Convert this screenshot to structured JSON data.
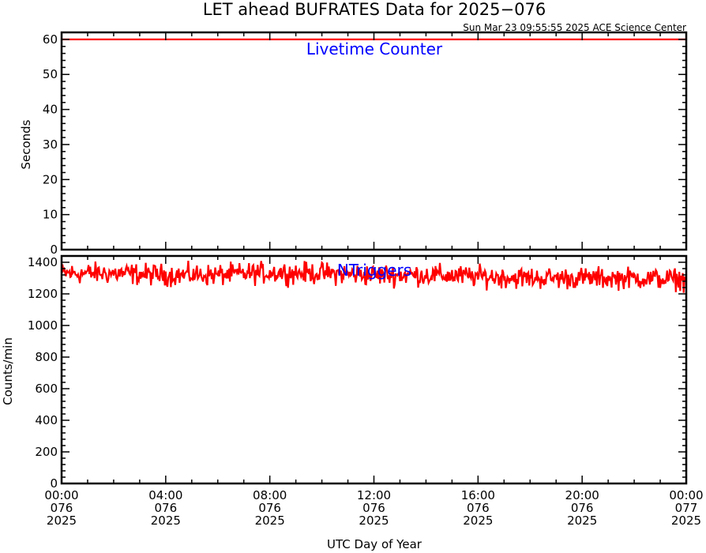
{
  "title": "LET ahead BUFRATES Data for 2025−076",
  "subtitle": "Sun Mar 23 09:55:55 2025 ACE Science Center",
  "xlabel": "UTC Day of Year",
  "colors": {
    "series": "#ff0000",
    "label": "#0000ff",
    "axis": "#000000"
  },
  "chart_data": [
    {
      "type": "line",
      "panel": "top",
      "title": "",
      "label": "Livetime Counter",
      "ylabel": "Seconds",
      "ylim": [
        0,
        62
      ],
      "yticks": [
        0,
        10,
        20,
        30,
        40,
        50,
        60
      ],
      "ytick_labels": [
        "0",
        "10",
        "20",
        "30",
        "40",
        "50",
        "60"
      ],
      "x_range_hours": [
        0,
        24
      ],
      "series": [
        {
          "x_hours": [
            0,
            24
          ],
          "values": [
            60,
            60
          ]
        }
      ]
    },
    {
      "type": "line",
      "panel": "bottom",
      "title": "",
      "label": "NTriggers",
      "ylabel": "Counts/min",
      "ylim": [
        0,
        1440
      ],
      "yticks": [
        0,
        200,
        400,
        600,
        800,
        1000,
        1200,
        1400
      ],
      "ytick_labels": [
        "0",
        "200",
        "400",
        "600",
        "800",
        "1000",
        "1200",
        "1400"
      ],
      "x_range_hours": [
        0,
        24
      ],
      "series": [
        {
          "x_hours": [
            0,
            2,
            4,
            6,
            8,
            10,
            12,
            14,
            16,
            18,
            20,
            22,
            24
          ],
          "values": [
            1330,
            1330,
            1320,
            1320,
            1335,
            1330,
            1320,
            1320,
            1310,
            1300,
            1300,
            1300,
            1290
          ],
          "noise_amplitude": 50
        }
      ]
    }
  ],
  "xticks": [
    {
      "hour": 0,
      "time": "00:00",
      "doy": "076",
      "year": "2025"
    },
    {
      "hour": 4,
      "time": "04:00",
      "doy": "076",
      "year": "2025"
    },
    {
      "hour": 8,
      "time": "08:00",
      "doy": "076",
      "year": "2025"
    },
    {
      "hour": 12,
      "time": "12:00",
      "doy": "076",
      "year": "2025"
    },
    {
      "hour": 16,
      "time": "16:00",
      "doy": "076",
      "year": "2025"
    },
    {
      "hour": 20,
      "time": "20:00",
      "doy": "076",
      "year": "2025"
    },
    {
      "hour": 24,
      "time": "00:00",
      "doy": "077",
      "year": "2025"
    }
  ]
}
